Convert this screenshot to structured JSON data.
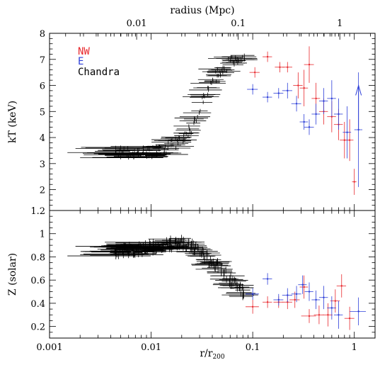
{
  "chart_data": [
    {
      "type": "scatter",
      "panel": "top",
      "xlabel": "r/r200",
      "ylabel": "kT (keV)",
      "xlog": true,
      "xlim": [
        0.001,
        1.6
      ],
      "ylim": [
        1.2,
        8
      ],
      "top_axis": {
        "label": "radius (Mpc)",
        "ticks": [
          {
            "label": "0.01",
            "value": 0.0072
          },
          {
            "label": "0.1",
            "value": 0.072
          },
          {
            "label": "1",
            "value": 0.72
          }
        ]
      },
      "x_tick_labels": [
        "0.001",
        "0.01",
        "0.1",
        "1"
      ],
      "y_tick_labels": [
        "2",
        "3",
        "4",
        "5",
        "6",
        "7",
        "8"
      ],
      "legend": {
        "placement": "top-left",
        "entries": [
          {
            "label": "NW",
            "color": "#e8282d"
          },
          {
            "label": "E",
            "color": "#2c3ed8"
          },
          {
            "label": "Chandra",
            "color": "#000000"
          }
        ]
      },
      "series": [
        {
          "name": "NW",
          "color": "#e8282d",
          "points": [
            {
              "x": 0.105,
              "xerr": 0.012,
              "y": 6.5,
              "yerr": 0.2
            },
            {
              "x": 0.14,
              "xerr": 0.015,
              "y": 7.1,
              "yerr": 0.2
            },
            {
              "x": 0.185,
              "xerr": 0.02,
              "y": 6.7,
              "yerr": 0.2
            },
            {
              "x": 0.22,
              "xerr": 0.025,
              "y": 6.7,
              "yerr": 0.2
            },
            {
              "x": 0.28,
              "xerr": 0.03,
              "y": 6.0,
              "yerr": 0.5
            },
            {
              "x": 0.32,
              "xerr": 0.03,
              "y": 5.9,
              "yerr": 0.7
            },
            {
              "x": 0.36,
              "xerr": 0.04,
              "y": 6.8,
              "yerr": 0.7
            },
            {
              "x": 0.42,
              "xerr": 0.04,
              "y": 5.5,
              "yerr": 0.6
            },
            {
              "x": 0.5,
              "xerr": 0.05,
              "y": 5.0,
              "yerr": 0.5
            },
            {
              "x": 0.6,
              "xerr": 0.06,
              "y": 4.8,
              "yerr": 0.6
            },
            {
              "x": 0.7,
              "xerr": 0.07,
              "y": 4.5,
              "yerr": 0.6
            },
            {
              "x": 0.8,
              "xerr": 0.08,
              "y": 3.9,
              "yerr": 0.7
            },
            {
              "x": 0.9,
              "xerr": 0.08,
              "y": 3.9,
              "yerr": 0.8
            },
            {
              "x": 1.0,
              "xerr": 0.05,
              "y": 2.3,
              "yerr": 0.5
            }
          ]
        },
        {
          "name": "E",
          "color": "#2c3ed8",
          "points": [
            {
              "x": 0.1,
              "xerr": 0.012,
              "y": 5.85,
              "yerr": 0.2
            },
            {
              "x": 0.14,
              "xerr": 0.015,
              "y": 5.55,
              "yerr": 0.2
            },
            {
              "x": 0.18,
              "xerr": 0.02,
              "y": 5.7,
              "yerr": 0.2
            },
            {
              "x": 0.22,
              "xerr": 0.025,
              "y": 5.8,
              "yerr": 0.3
            },
            {
              "x": 0.27,
              "xerr": 0.03,
              "y": 5.3,
              "yerr": 0.3
            },
            {
              "x": 0.32,
              "xerr": 0.03,
              "y": 4.6,
              "yerr": 0.3
            },
            {
              "x": 0.36,
              "xerr": 0.04,
              "y": 4.4,
              "yerr": 0.3
            },
            {
              "x": 0.42,
              "xerr": 0.04,
              "y": 4.9,
              "yerr": 0.4
            },
            {
              "x": 0.5,
              "xerr": 0.05,
              "y": 5.4,
              "yerr": 0.5
            },
            {
              "x": 0.6,
              "xerr": 0.06,
              "y": 5.5,
              "yerr": 0.7
            },
            {
              "x": 0.7,
              "xerr": 0.07,
              "y": 4.9,
              "yerr": 0.6
            },
            {
              "x": 0.85,
              "xerr": 0.08,
              "y": 4.2,
              "yerr": 1.0
            },
            {
              "x": 1.1,
              "xerr": 0.1,
              "y": 4.3,
              "yerr": 2.2
            }
          ]
        }
      ],
      "lower_limit_arrow": {
        "x": 1.1,
        "y_from": 4.3,
        "y_to": 6.0,
        "color": "#2c3ed8"
      },
      "chandra_trend": {
        "color": "#000000",
        "description": "about 130 profile points",
        "x": [
          0.0015,
          0.003,
          0.006,
          0.01,
          0.015,
          0.02,
          0.025,
          0.03,
          0.035,
          0.04,
          0.05,
          0.06,
          0.08
        ],
        "y": [
          3.6,
          3.5,
          3.4,
          3.45,
          3.65,
          3.9,
          4.4,
          5.1,
          5.7,
          6.2,
          6.6,
          6.9,
          7.1
        ]
      }
    },
    {
      "type": "scatter",
      "panel": "bottom",
      "xlabel": "r/r200",
      "ylabel": "Z (solar)",
      "xlog": true,
      "xlim": [
        0.001,
        1.6
      ],
      "ylim": [
        0.1,
        1.2
      ],
      "y_tick_labels": [
        "0.2",
        "0.4",
        "0.6",
        "0.8",
        "1",
        "1.2"
      ],
      "series": [
        {
          "name": "NW",
          "color": "#e8282d",
          "points": [
            {
              "x": 0.1,
              "xerr": 0.015,
              "y": 0.37,
              "yerr": 0.06
            },
            {
              "x": 0.14,
              "xerr": 0.015,
              "y": 0.41,
              "yerr": 0.05
            },
            {
              "x": 0.18,
              "xerr": 0.02,
              "y": 0.41,
              "yerr": 0.05
            },
            {
              "x": 0.22,
              "xerr": 0.025,
              "y": 0.41,
              "yerr": 0.06
            },
            {
              "x": 0.26,
              "xerr": 0.03,
              "y": 0.43,
              "yerr": 0.07
            },
            {
              "x": 0.32,
              "xerr": 0.03,
              "y": 0.54,
              "yerr": 0.1
            },
            {
              "x": 0.36,
              "xerr": 0.06,
              "y": 0.29,
              "yerr": 0.06
            },
            {
              "x": 0.45,
              "xerr": 0.05,
              "y": 0.3,
              "yerr": 0.08
            },
            {
              "x": 0.55,
              "xerr": 0.06,
              "y": 0.3,
              "yerr": 0.1
            },
            {
              "x": 0.65,
              "xerr": 0.07,
              "y": 0.42,
              "yerr": 0.1
            },
            {
              "x": 0.75,
              "xerr": 0.08,
              "y": 0.55,
              "yerr": 0.1
            },
            {
              "x": 0.9,
              "xerr": 0.1,
              "y": 0.27,
              "yerr": 0.1
            }
          ]
        },
        {
          "name": "E",
          "color": "#2c3ed8",
          "points": [
            {
              "x": 0.1,
              "xerr": 0.015,
              "y": 0.48,
              "yerr": 0.05
            },
            {
              "x": 0.14,
              "xerr": 0.015,
              "y": 0.61,
              "yerr": 0.05
            },
            {
              "x": 0.18,
              "xerr": 0.02,
              "y": 0.43,
              "yerr": 0.05
            },
            {
              "x": 0.22,
              "xerr": 0.025,
              "y": 0.47,
              "yerr": 0.06
            },
            {
              "x": 0.27,
              "xerr": 0.03,
              "y": 0.48,
              "yerr": 0.07
            },
            {
              "x": 0.31,
              "xerr": 0.03,
              "y": 0.56,
              "yerr": 0.08
            },
            {
              "x": 0.36,
              "xerr": 0.035,
              "y": 0.5,
              "yerr": 0.08
            },
            {
              "x": 0.42,
              "xerr": 0.04,
              "y": 0.43,
              "yerr": 0.08
            },
            {
              "x": 0.5,
              "xerr": 0.05,
              "y": 0.45,
              "yerr": 0.1
            },
            {
              "x": 0.6,
              "xerr": 0.06,
              "y": 0.36,
              "yerr": 0.1
            },
            {
              "x": 0.7,
              "xerr": 0.07,
              "y": 0.3,
              "yerr": 0.12
            },
            {
              "x": 1.1,
              "xerr": 0.2,
              "y": 0.33,
              "yerr": 0.12
            }
          ]
        }
      ],
      "chandra_trend": {
        "color": "#000000",
        "description": "about 150 profile points",
        "x": [
          0.0015,
          0.003,
          0.006,
          0.01,
          0.015,
          0.02,
          0.025,
          0.03,
          0.04,
          0.05,
          0.06,
          0.08
        ],
        "y": [
          0.82,
          0.84,
          0.86,
          0.88,
          0.91,
          0.92,
          0.89,
          0.84,
          0.76,
          0.68,
          0.6,
          0.5
        ]
      }
    }
  ]
}
